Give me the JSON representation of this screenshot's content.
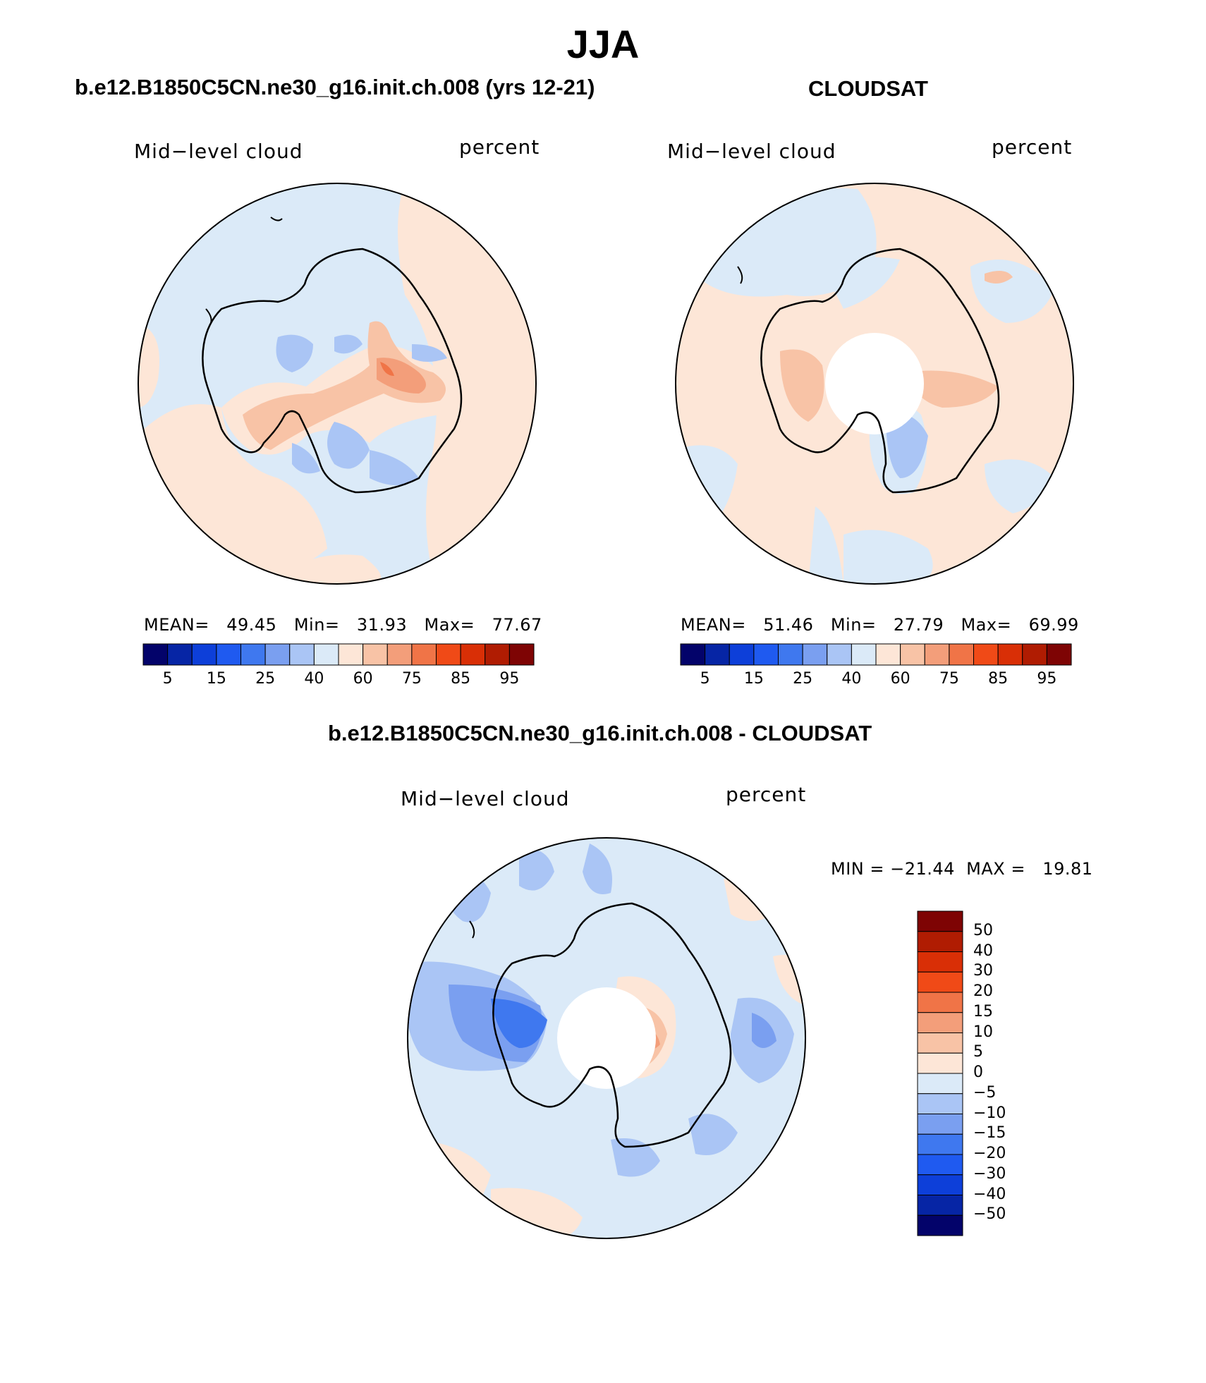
{
  "page": {
    "title": "JJA",
    "difference_title": "b.e12.B1850C5CN.ne30_g16.init.ch.008 - CLOUDSAT"
  },
  "panels": [
    {
      "title": "b.e12.B1850C5CN.ne30_g16.init.ch.008 (yrs 12-21)",
      "variable": "Mid−level cloud",
      "units": "percent",
      "stats_text": "MEAN=   49.45   Min=   31.93   Max=   77.67",
      "pole_hole": false
    },
    {
      "title": "CLOUDSAT",
      "variable": "Mid−level cloud",
      "units": "percent",
      "stats_text": "MEAN=   51.46   Min=   27.79   Max=   69.99",
      "pole_hole": true
    },
    {
      "variable": "Mid−level cloud",
      "units": "percent",
      "stats_text": "MIN = −21.44  MAX =   19.81",
      "pole_hole": true
    }
  ],
  "colorbar_horizontal": {
    "colors": [
      "#03036a",
      "#0625a5",
      "#0d3fd9",
      "#1f5af0",
      "#3f78ef",
      "#7a9ff0",
      "#aac5f5",
      "#dbeaf8",
      "#fde6d7",
      "#f8c3a6",
      "#f39e7a",
      "#f07447",
      "#f04a17",
      "#d92f06",
      "#b01c02",
      "#7e0404"
    ],
    "tick_labels": [
      "5",
      "15",
      "25",
      "40",
      "60",
      "75",
      "85",
      "95"
    ]
  },
  "colorbar_vertical": {
    "colors": [
      "#7e0404",
      "#b01c02",
      "#d92f06",
      "#f04a17",
      "#f07447",
      "#f39e7a",
      "#f8c3a6",
      "#fde6d7",
      "#dbeaf8",
      "#aac5f5",
      "#7a9ff0",
      "#3f78ef",
      "#1f5af0",
      "#0d3fd9",
      "#0625a5",
      "#03036a"
    ],
    "tick_labels": [
      "50",
      "40",
      "30",
      "20",
      "15",
      "10",
      "5",
      "0",
      "−5",
      "−10",
      "−15",
      "−20",
      "−30",
      "−40",
      "−50"
    ]
  }
}
